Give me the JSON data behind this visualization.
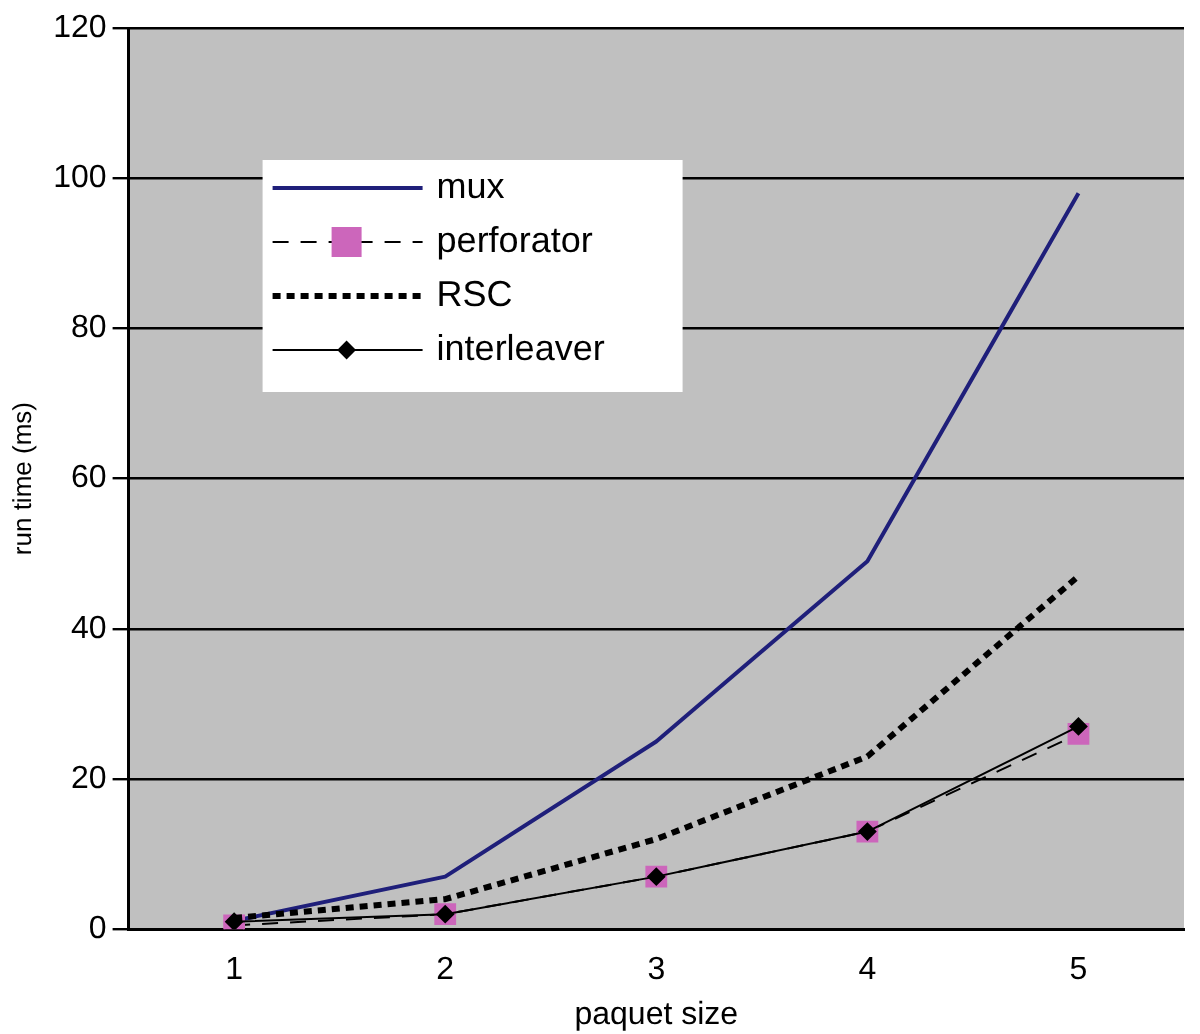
{
  "chart_data": {
    "type": "line",
    "xlabel": "paquet size",
    "ylabel": "run time (ms)",
    "categories": [
      "1",
      "2",
      "3",
      "4",
      "5"
    ],
    "series": [
      {
        "name": "mux",
        "color": "#1f1f7a",
        "values": [
          1.1,
          7,
          25,
          49,
          98
        ],
        "marker": "none",
        "line_style": "solid"
      },
      {
        "name": "perforator",
        "color": "#cc66bb",
        "values": [
          0.5,
          2,
          7,
          13,
          26
        ],
        "marker": "square",
        "line_style": "dashed"
      },
      {
        "name": "RSC",
        "color": "#000000",
        "values": [
          1.5,
          4,
          12,
          23,
          47
        ],
        "marker": "none",
        "line_style": "dashed"
      },
      {
        "name": "interleaver",
        "color": "#000000",
        "values": [
          1,
          2,
          7,
          13,
          27
        ],
        "marker": "diamond",
        "line_style": "solid"
      }
    ],
    "ylim": [
      0,
      120
    ],
    "yticks": [
      0,
      20,
      40,
      60,
      80,
      100,
      120
    ],
    "grid": "y",
    "legend": "top left"
  }
}
